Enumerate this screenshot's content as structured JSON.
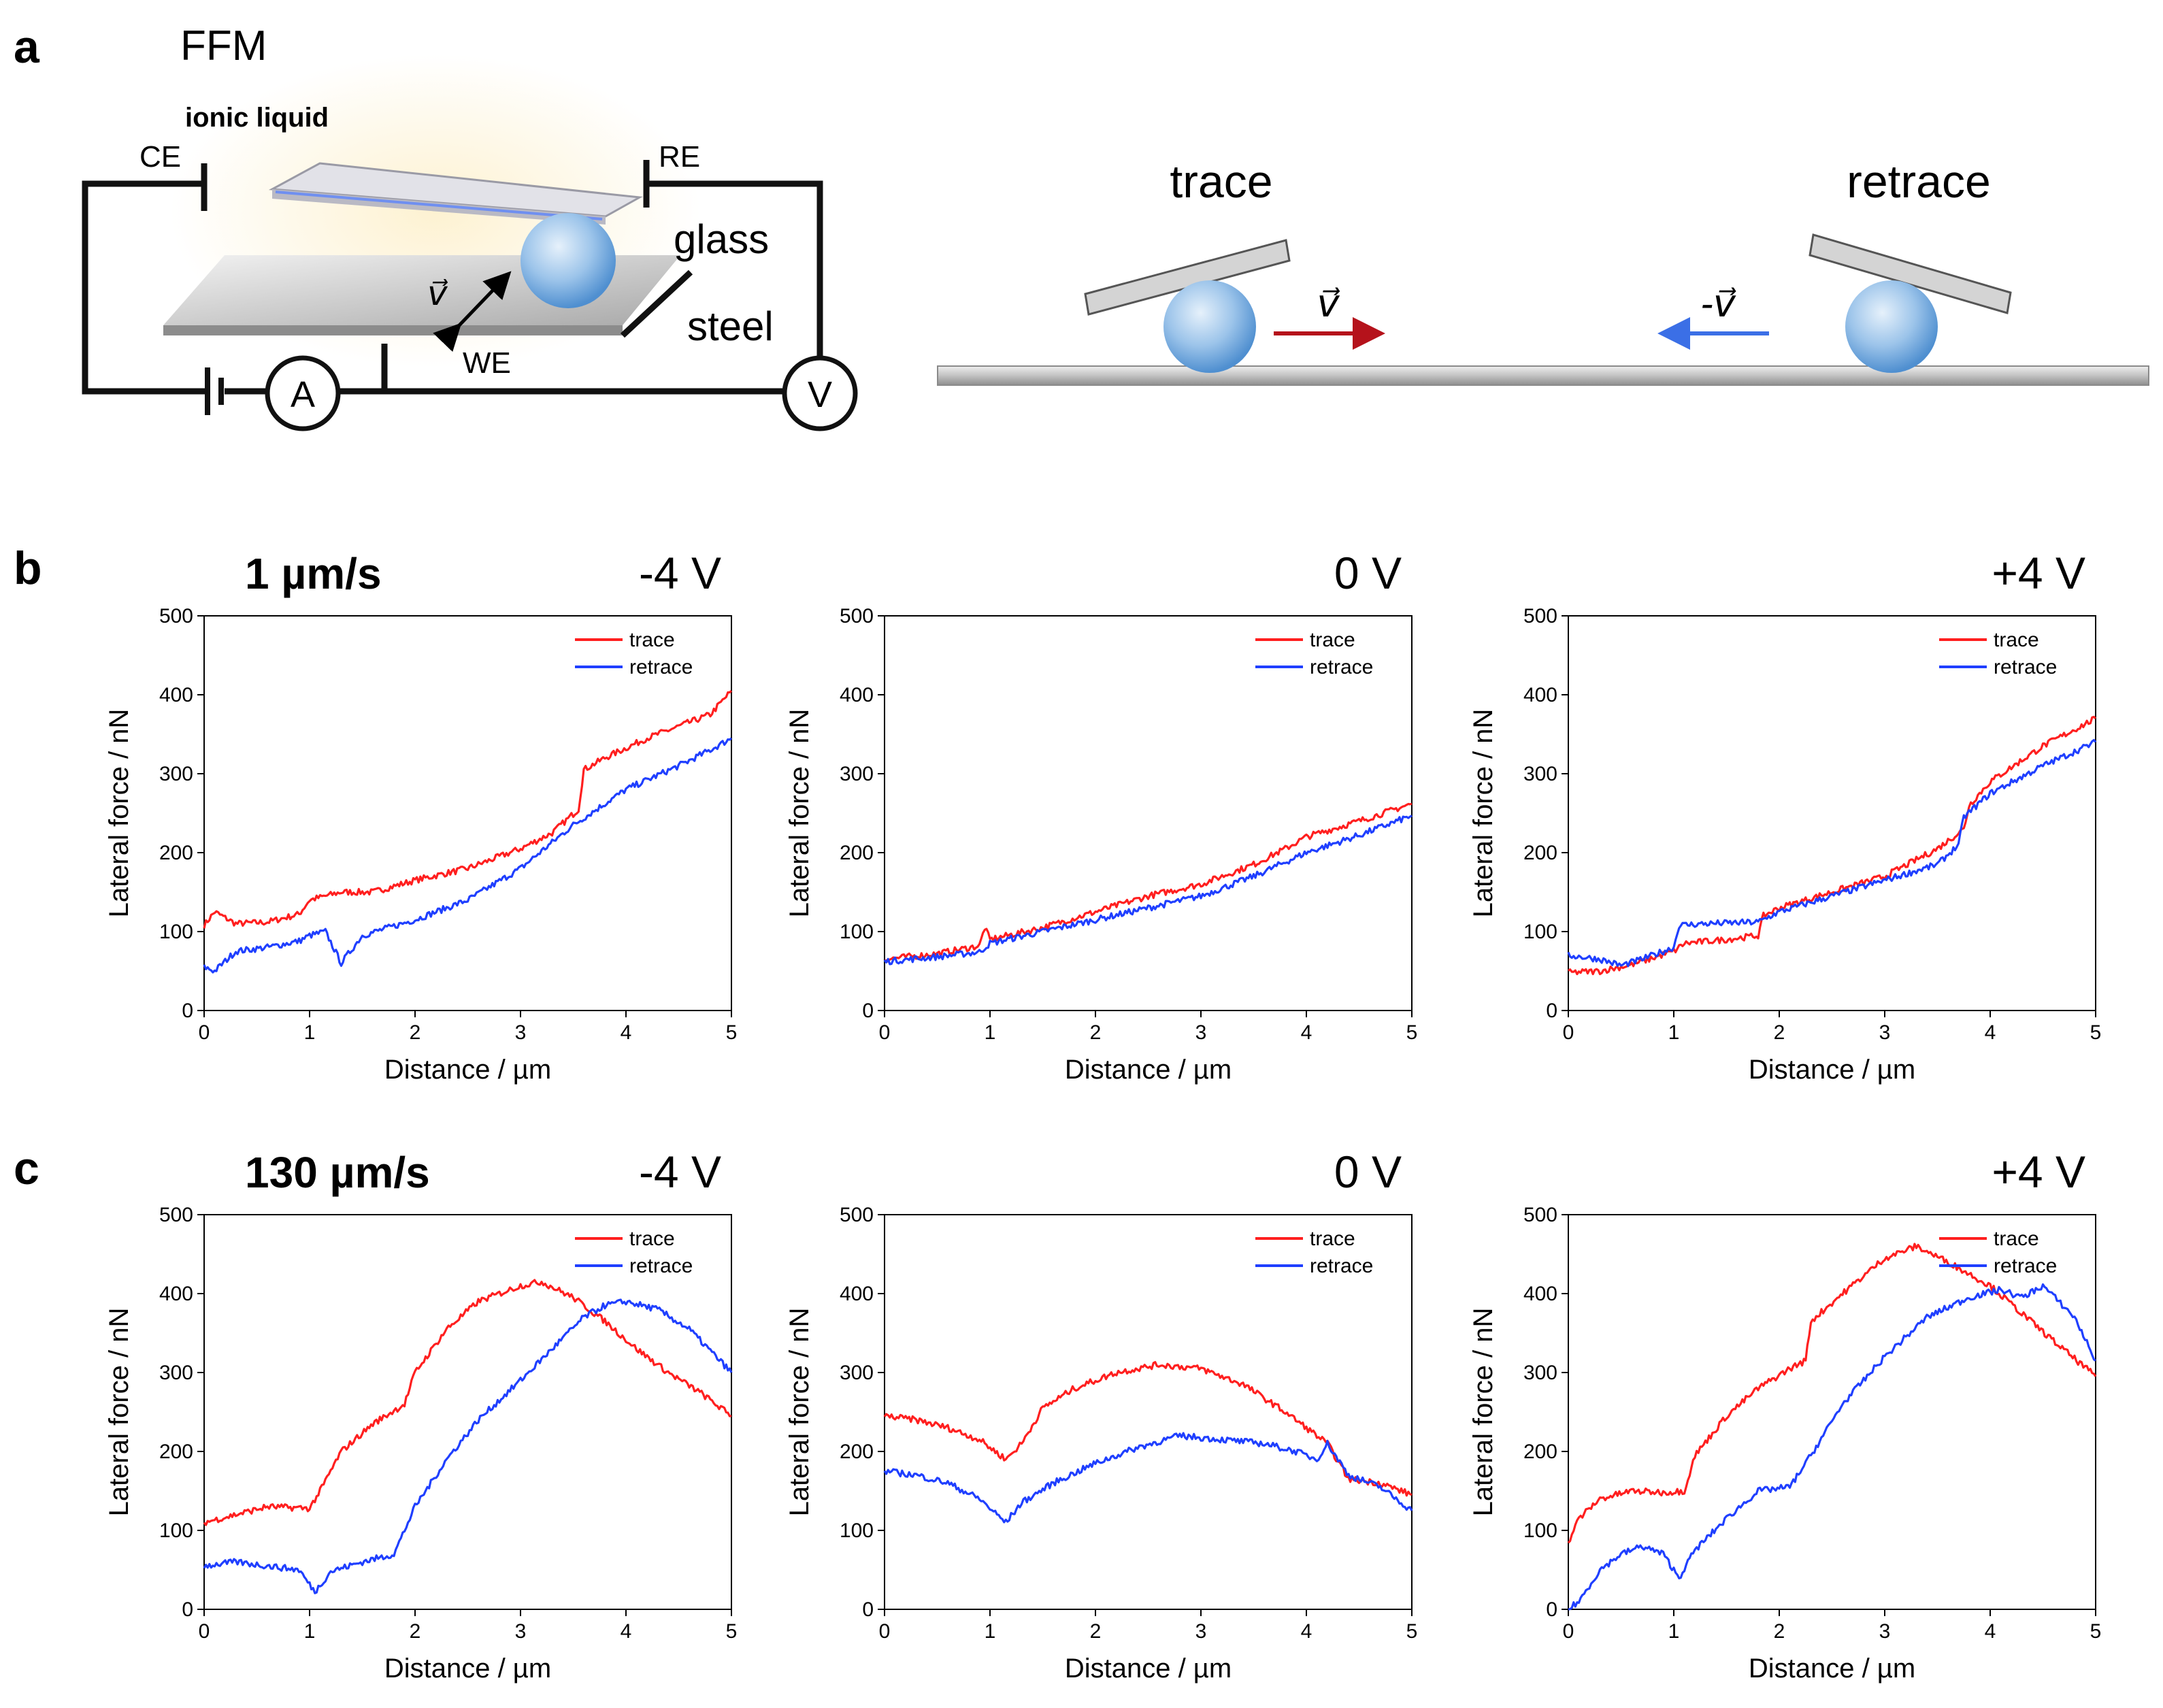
{
  "panel_a": {
    "letter": "a",
    "title": "FFM",
    "ionic_liquid": "ionic liquid",
    "ce": "CE",
    "re": "RE",
    "we": "WE",
    "glass": "glass",
    "steel": "steel",
    "ammeter": "A",
    "voltmeter": "V",
    "velocity": "v⃗",
    "trace": "trace",
    "retrace": "retrace",
    "trace_velocity": "v⃗",
    "retrace_velocity": "-v⃗",
    "colors": {
      "trace": "#b5121b",
      "retrace": "#3b6fe6",
      "ionic": "#f0a500",
      "glass_text": "#3b6fe6"
    }
  },
  "colors": {
    "trace": "#ff1f1f",
    "retrace": "#1f3fff"
  },
  "chart_data": [
    {
      "id": "b1",
      "type": "line",
      "panel": "b",
      "speed": "1 µm/s",
      "voltage": "-4 V",
      "xlabel": "Distance / µm",
      "ylabel": "Lateral force / nN",
      "xlim": [
        0,
        5
      ],
      "ylim": [
        0,
        500
      ],
      "xticks": [
        0,
        1,
        2,
        3,
        4,
        5
      ],
      "yticks": [
        0,
        100,
        200,
        300,
        400,
        500
      ],
      "legend": [
        "trace",
        "retrace"
      ],
      "legend_position": "top-right",
      "series": [
        {
          "name": "trace",
          "x": [
            0,
            0.1,
            0.3,
            0.6,
            0.9,
            1.0,
            1.3,
            1.6,
            2.0,
            2.5,
            3.0,
            3.3,
            3.55,
            3.6,
            3.8,
            4.2,
            4.5,
            4.8,
            5.0
          ],
          "y": [
            108,
            125,
            110,
            112,
            122,
            140,
            150,
            150,
            165,
            180,
            205,
            225,
            255,
            305,
            320,
            345,
            360,
            375,
            405
          ]
        },
        {
          "name": "retrace",
          "x": [
            0,
            0.1,
            0.3,
            0.6,
            0.9,
            1.0,
            1.15,
            1.3,
            1.5,
            2.0,
            2.5,
            3.0,
            3.5,
            4.0,
            4.5,
            4.8,
            5.0
          ],
          "y": [
            55,
            50,
            75,
            80,
            88,
            95,
            100,
            60,
            95,
            115,
            140,
            180,
            235,
            280,
            310,
            330,
            345
          ]
        }
      ]
    },
    {
      "id": "b2",
      "type": "line",
      "panel": "b",
      "speed": "",
      "voltage": "0 V",
      "xlabel": "Distance / µm",
      "ylabel": "Lateral force / nN",
      "xlim": [
        0,
        5
      ],
      "ylim": [
        0,
        500
      ],
      "xticks": [
        0,
        1,
        2,
        3,
        4,
        5
      ],
      "yticks": [
        0,
        100,
        200,
        300,
        400,
        500
      ],
      "legend": [
        "trace",
        "retrace"
      ],
      "legend_position": "top-right",
      "series": [
        {
          "name": "trace",
          "x": [
            0,
            0.5,
            0.9,
            0.95,
            1.0,
            1.5,
            2.0,
            2.5,
            3.0,
            3.5,
            3.8,
            4.0,
            4.5,
            5.0
          ],
          "y": [
            65,
            72,
            82,
            105,
            90,
            105,
            125,
            145,
            160,
            185,
            205,
            220,
            240,
            262
          ]
        },
        {
          "name": "retrace",
          "x": [
            0,
            0.5,
            0.9,
            1.0,
            1.5,
            2.0,
            2.5,
            3.0,
            3.5,
            4.0,
            4.5,
            5.0
          ],
          "y": [
            62,
            68,
            74,
            85,
            100,
            115,
            130,
            145,
            170,
            200,
            222,
            247
          ]
        }
      ]
    },
    {
      "id": "b3",
      "type": "line",
      "panel": "b",
      "speed": "",
      "voltage": "+4 V",
      "xlabel": "Distance / µm",
      "ylabel": "Lateral force / nN",
      "xlim": [
        0,
        5
      ],
      "ylim": [
        0,
        500
      ],
      "xticks": [
        0,
        1,
        2,
        3,
        4,
        5
      ],
      "yticks": [
        0,
        100,
        200,
        300,
        400,
        500
      ],
      "legend": [
        "trace",
        "retrace"
      ],
      "legend_position": "top-right",
      "series": [
        {
          "name": "trace",
          "x": [
            0,
            0.3,
            0.6,
            1.0,
            1.1,
            1.5,
            1.8,
            1.85,
            2.0,
            2.5,
            3.0,
            3.5,
            3.75,
            3.8,
            4.0,
            4.5,
            5.0
          ],
          "y": [
            48,
            50,
            58,
            75,
            85,
            90,
            95,
            120,
            130,
            150,
            170,
            205,
            230,
            260,
            290,
            335,
            370
          ]
        },
        {
          "name": "retrace",
          "x": [
            0,
            0.3,
            0.5,
            0.7,
            1.0,
            1.05,
            1.3,
            1.8,
            2.0,
            2.5,
            3.0,
            3.5,
            3.7,
            3.75,
            4.0,
            4.5,
            5.0
          ],
          "y": [
            70,
            65,
            57,
            65,
            80,
            108,
            110,
            112,
            125,
            145,
            165,
            185,
            210,
            245,
            275,
            310,
            340
          ]
        }
      ]
    },
    {
      "id": "c1",
      "type": "line",
      "panel": "c",
      "speed": "130 µm/s",
      "voltage": "-4 V",
      "xlabel": "Distance / µm",
      "ylabel": "Lateral force / nN",
      "xlim": [
        0,
        5
      ],
      "ylim": [
        0,
        500
      ],
      "xticks": [
        0,
        1,
        2,
        3,
        4,
        5
      ],
      "yticks": [
        0,
        100,
        200,
        300,
        400,
        500
      ],
      "legend": [
        "trace",
        "retrace"
      ],
      "legend_position": "top-right",
      "series": [
        {
          "name": "trace",
          "x": [
            0,
            0.3,
            0.6,
            1.0,
            1.1,
            1.3,
            1.6,
            1.9,
            2.0,
            2.3,
            2.6,
            3.0,
            3.2,
            3.5,
            3.8,
            4.1,
            4.4,
            4.7,
            5.0
          ],
          "y": [
            110,
            120,
            130,
            128,
            150,
            200,
            235,
            260,
            300,
            355,
            390,
            410,
            415,
            395,
            365,
            330,
            300,
            275,
            245
          ]
        },
        {
          "name": "retrace",
          "x": [
            0,
            0.3,
            0.6,
            0.9,
            1.05,
            1.2,
            1.5,
            1.8,
            2.0,
            2.3,
            2.6,
            3.0,
            3.3,
            3.6,
            3.8,
            4.0,
            4.3,
            4.6,
            5.0
          ],
          "y": [
            55,
            60,
            55,
            50,
            22,
            48,
            60,
            70,
            130,
            190,
            240,
            290,
            330,
            370,
            385,
            390,
            380,
            355,
            300
          ]
        }
      ]
    },
    {
      "id": "c2",
      "type": "line",
      "panel": "c",
      "speed": "",
      "voltage": "0 V",
      "xlabel": "Distance / µm",
      "ylabel": "Lateral force / nN",
      "xlim": [
        0,
        5
      ],
      "ylim": [
        0,
        500
      ],
      "xticks": [
        0,
        1,
        2,
        3,
        4,
        5
      ],
      "yticks": [
        0,
        100,
        200,
        300,
        400,
        500
      ],
      "legend": [
        "trace",
        "retrace"
      ],
      "legend_position": "top-right",
      "series": [
        {
          "name": "trace",
          "x": [
            0,
            0.3,
            0.6,
            0.9,
            1.15,
            1.3,
            1.5,
            1.8,
            2.2,
            2.6,
            3.0,
            3.4,
            3.8,
            4.2,
            4.4,
            4.7,
            5.0
          ],
          "y": [
            245,
            240,
            230,
            215,
            190,
            210,
            255,
            280,
            300,
            310,
            305,
            285,
            250,
            210,
            165,
            160,
            145
          ]
        },
        {
          "name": "retrace",
          "x": [
            0,
            0.3,
            0.6,
            0.9,
            1.15,
            1.3,
            1.6,
            2.0,
            2.4,
            2.8,
            3.2,
            3.6,
            3.9,
            4.1,
            4.2,
            4.4,
            4.7,
            5.0
          ],
          "y": [
            175,
            170,
            160,
            140,
            110,
            135,
            160,
            185,
            205,
            220,
            215,
            210,
            200,
            190,
            210,
            170,
            155,
            125
          ]
        }
      ]
    },
    {
      "id": "c3",
      "type": "line",
      "panel": "c",
      "speed": "",
      "voltage": "+4 V",
      "xlabel": "Distance / µm",
      "ylabel": "Lateral force / nN",
      "xlim": [
        0,
        5
      ],
      "ylim": [
        0,
        500
      ],
      "xticks": [
        0,
        1,
        2,
        3,
        4,
        5
      ],
      "yticks": [
        0,
        100,
        200,
        300,
        400,
        500
      ],
      "legend": [
        "trace",
        "retrace"
      ],
      "legend_position": "top-right",
      "series": [
        {
          "name": "trace",
          "x": [
            0,
            0.1,
            0.3,
            0.6,
            0.9,
            1.1,
            1.2,
            1.5,
            1.8,
            2.1,
            2.25,
            2.3,
            2.6,
            3.0,
            3.3,
            3.6,
            4.0,
            4.3,
            4.6,
            5.0
          ],
          "y": [
            85,
            115,
            140,
            150,
            148,
            150,
            195,
            245,
            280,
            305,
            315,
            365,
            400,
            445,
            460,
            440,
            410,
            375,
            340,
            295
          ]
        },
        {
          "name": "retrace",
          "x": [
            0,
            0.1,
            0.3,
            0.5,
            0.7,
            0.9,
            1.05,
            1.2,
            1.5,
            1.8,
            2.1,
            2.3,
            2.6,
            3.0,
            3.4,
            3.8,
            4.1,
            4.3,
            4.5,
            4.8,
            5.0
          ],
          "y": [
            0,
            10,
            50,
            70,
            80,
            70,
            40,
            75,
            115,
            150,
            155,
            195,
            260,
            320,
            370,
            395,
            405,
            395,
            410,
            370,
            315
          ]
        }
      ]
    }
  ]
}
